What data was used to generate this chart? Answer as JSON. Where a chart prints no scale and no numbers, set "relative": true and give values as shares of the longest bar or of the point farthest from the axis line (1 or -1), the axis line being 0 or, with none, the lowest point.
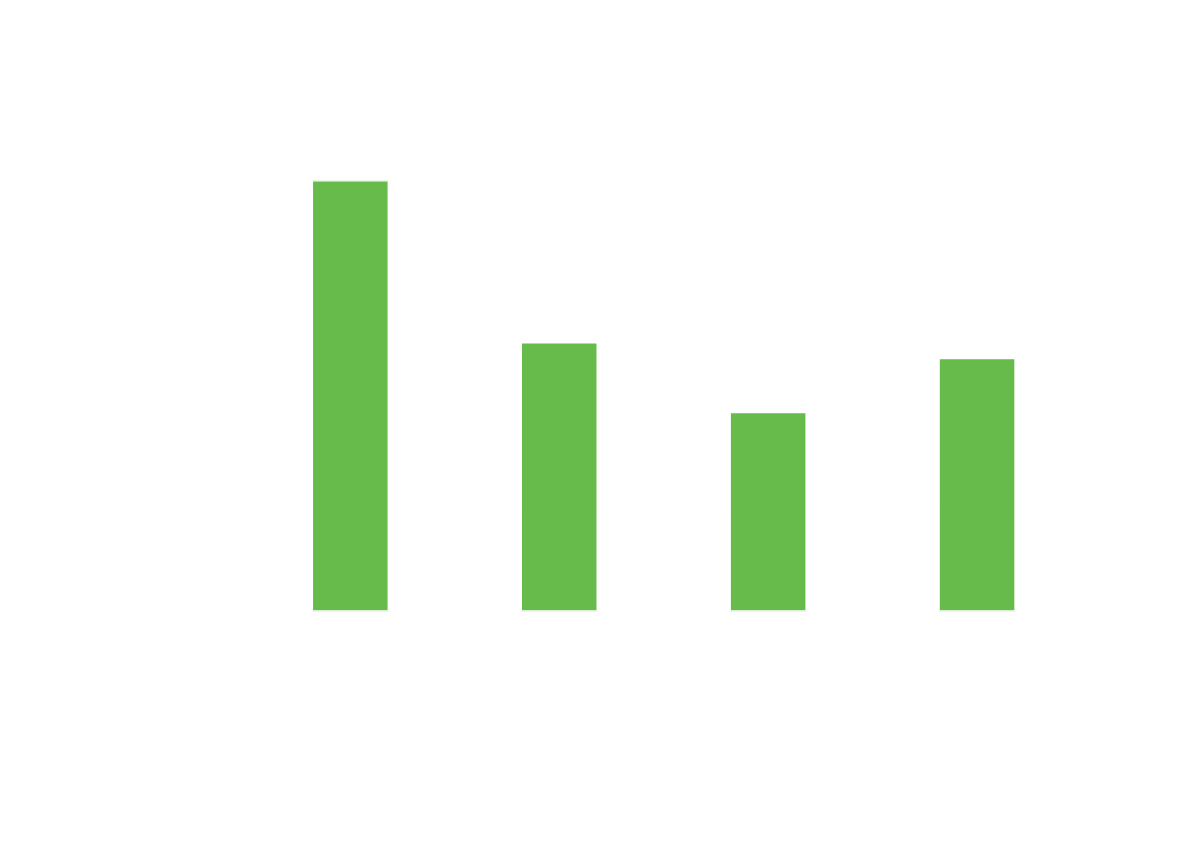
{
  "chart_data": {
    "type": "bar",
    "relative": true,
    "categories": [
      null,
      null,
      null,
      null
    ],
    "values": [
      1,
      0.625,
      0.463,
      0.588
    ],
    "color": "#66bb4b"
  }
}
